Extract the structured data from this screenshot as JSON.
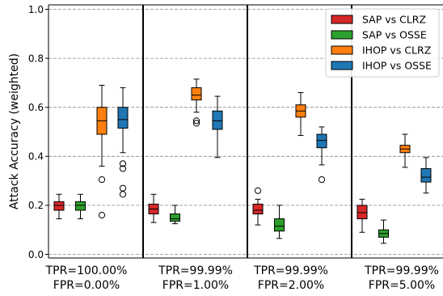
{
  "chart_data": {
    "type": "box",
    "title": "",
    "xlabel": "",
    "ylabel": "Attack Accuracy (weighted)",
    "ylim": [
      0.0,
      1.0
    ],
    "yticks": [
      "0.0",
      "0.2",
      "0.4",
      "0.6",
      "0.8",
      "1.0"
    ],
    "grid": "horizontal dashed",
    "legend_position": "top-right",
    "groups": [
      {
        "tpr_label": "TPR=100.00%",
        "fpr_label": "FPR=0.00%"
      },
      {
        "tpr_label": "TPR=99.99%",
        "fpr_label": "FPR=1.00%"
      },
      {
        "tpr_label": "TPR=99.99%",
        "fpr_label": "FPR=2.00%"
      },
      {
        "tpr_label": "TPR=99.99%",
        "fpr_label": "FPR=5.00%"
      }
    ],
    "series": [
      {
        "name": "SAP vs CLRZ",
        "color": "#d62728",
        "boxes": [
          {
            "whislo": 0.145,
            "q1": 0.18,
            "median": 0.2,
            "q3": 0.215,
            "whishi": 0.245,
            "fliers": []
          },
          {
            "whislo": 0.13,
            "q1": 0.165,
            "median": 0.185,
            "q3": 0.205,
            "whishi": 0.245,
            "fliers": []
          },
          {
            "whislo": 0.12,
            "q1": 0.165,
            "median": 0.18,
            "q3": 0.205,
            "whishi": 0.225,
            "fliers": [
              0.26
            ]
          },
          {
            "whislo": 0.09,
            "q1": 0.145,
            "median": 0.17,
            "q3": 0.2,
            "whishi": 0.225,
            "fliers": []
          }
        ]
      },
      {
        "name": "SAP vs OSSE",
        "color": "#2ca02c",
        "boxes": [
          {
            "whislo": 0.145,
            "q1": 0.18,
            "median": 0.2,
            "q3": 0.215,
            "whishi": 0.245,
            "fliers": []
          },
          {
            "whislo": 0.125,
            "q1": 0.135,
            "median": 0.145,
            "q3": 0.165,
            "whishi": 0.2,
            "fliers": []
          },
          {
            "whislo": 0.065,
            "q1": 0.095,
            "median": 0.115,
            "q3": 0.145,
            "whishi": 0.2,
            "fliers": []
          },
          {
            "whislo": 0.045,
            "q1": 0.07,
            "median": 0.085,
            "q3": 0.1,
            "whishi": 0.14,
            "fliers": []
          }
        ]
      },
      {
        "name": "IHOP vs CLRZ",
        "color": "#ff7f0e",
        "boxes": [
          {
            "whislo": 0.36,
            "q1": 0.49,
            "median": 0.545,
            "q3": 0.6,
            "whishi": 0.69,
            "fliers": [
              0.305,
              0.16
            ]
          },
          {
            "whislo": 0.58,
            "q1": 0.63,
            "median": 0.65,
            "q3": 0.68,
            "whishi": 0.715,
            "fliers": [
              0.545,
              0.535
            ]
          },
          {
            "whislo": 0.485,
            "q1": 0.56,
            "median": 0.585,
            "q3": 0.61,
            "whishi": 0.66,
            "fliers": []
          },
          {
            "whislo": 0.355,
            "q1": 0.415,
            "median": 0.43,
            "q3": 0.445,
            "whishi": 0.49,
            "fliers": []
          }
        ]
      },
      {
        "name": "IHOP vs OSSE",
        "color": "#1f77b4",
        "boxes": [
          {
            "whislo": 0.415,
            "q1": 0.515,
            "median": 0.55,
            "q3": 0.6,
            "whishi": 0.68,
            "fliers": [
              0.37,
              0.35,
              0.27,
              0.245
            ]
          },
          {
            "whislo": 0.395,
            "q1": 0.51,
            "median": 0.545,
            "q3": 0.585,
            "whishi": 0.645,
            "fliers": []
          },
          {
            "whislo": 0.365,
            "q1": 0.435,
            "median": 0.465,
            "q3": 0.49,
            "whishi": 0.52,
            "fliers": [
              0.305
            ]
          },
          {
            "whislo": 0.25,
            "q1": 0.295,
            "median": 0.315,
            "q3": 0.35,
            "whishi": 0.395,
            "fliers": []
          }
        ]
      }
    ]
  }
}
